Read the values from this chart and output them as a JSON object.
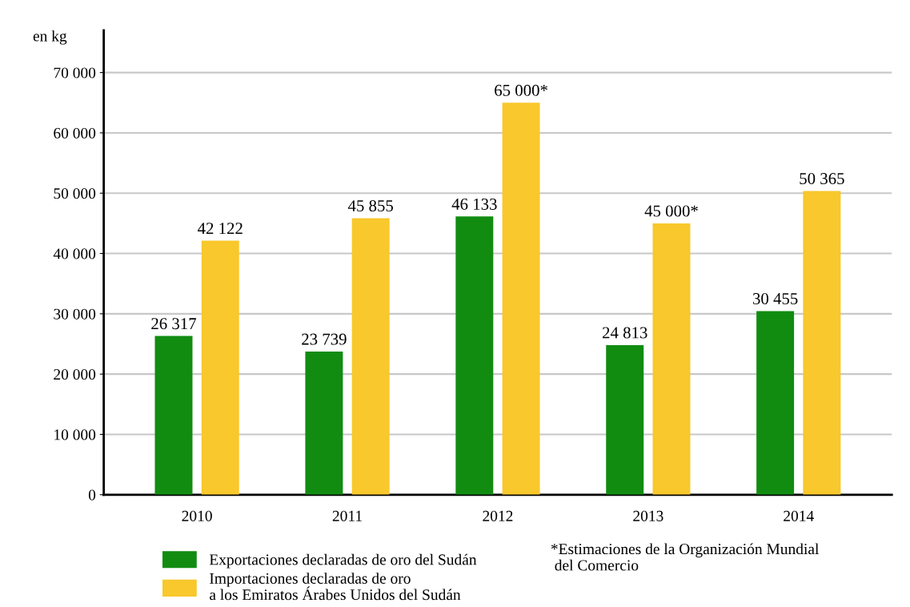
{
  "chart_data": {
    "type": "bar",
    "ylabel": "en kg",
    "categories": [
      "2010",
      "2011",
      "2012",
      "2013",
      "2014"
    ],
    "series": [
      {
        "name": "Exportaciones declaradas de oro del Sudán",
        "color": "#118c11",
        "values": [
          26317,
          23739,
          46133,
          24813,
          30455
        ],
        "value_labels": [
          "26 317",
          "23 739",
          "46 133",
          "24 813",
          "30 455"
        ]
      },
      {
        "name": "Importaciones declaradas de oro\na los Emiratos Árabes Unidos del Sudán",
        "color": "#f8c82c",
        "values": [
          42122,
          45855,
          65000,
          45000,
          50365
        ],
        "value_labels": [
          "42 122",
          "45 855",
          "65 000*",
          "45 000*",
          "50 365"
        ]
      }
    ],
    "ylim": [
      0,
      77000
    ],
    "yticks": [
      {
        "value": 0,
        "label": "0"
      },
      {
        "value": 10000,
        "label": "10 000"
      },
      {
        "value": 20000,
        "label": "20 000"
      },
      {
        "value": 30000,
        "label": "30 000"
      },
      {
        "value": 40000,
        "label": "40 000"
      },
      {
        "value": 50000,
        "label": "50 000"
      },
      {
        "value": 60000,
        "label": "60 000"
      },
      {
        "value": 70000,
        "label": "70 000"
      }
    ],
    "grid": "y",
    "legend": "bottom",
    "annotations": [
      "*Estimaciones de la Organización Mundial\n del Comercio"
    ]
  }
}
